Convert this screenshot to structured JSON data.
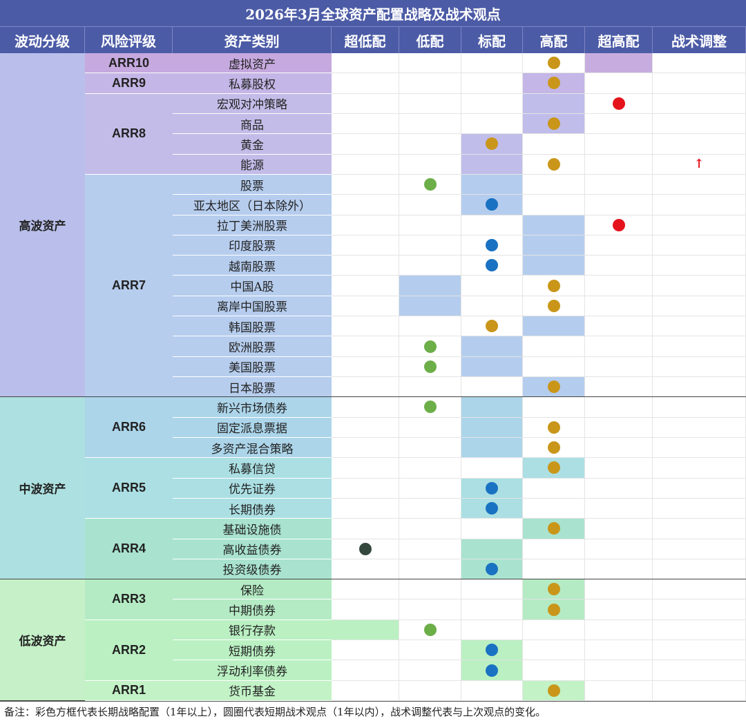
{
  "title": "2026年3月全球资产配置战略及战术观点",
  "columns": [
    "波动分级",
    "风险评级",
    "资产类别",
    "超低配",
    "低配",
    "标配",
    "高配",
    "超高配",
    "战术调整"
  ],
  "levels": [
    {
      "label": "高波资产",
      "color": "#b9bfea",
      "groups": [
        {
          "label": "ARR10",
          "color": "#c6a9df",
          "box_color": "#c7addf",
          "assets": [
            {
              "name": "虚拟资产",
              "box": 4,
              "dot": 3,
              "dot_color": "#c9961a"
            }
          ]
        },
        {
          "label": "ARR9",
          "color": "#c4b6e6",
          "box_color": "#c4b6e6",
          "assets": [
            {
              "name": "私募股权",
              "box": 3,
              "dot": 3,
              "dot_color": "#c9961a"
            }
          ]
        },
        {
          "label": "ARR8",
          "color": "#c4bce8",
          "box_color": "#c0bdea",
          "assets": [
            {
              "name": "宏观对冲策略",
              "box": 3,
              "dot": 4,
              "dot_color": "#e5141c"
            },
            {
              "name": "商品",
              "box": 3,
              "dot": 3,
              "dot_color": "#c9961a"
            },
            {
              "name": "黄金",
              "box": 2,
              "dot": 2,
              "dot_color": "#c9961a"
            },
            {
              "name": "能源",
              "box": 2,
              "dot": 3,
              "dot_color": "#c9961a",
              "adjust": "↑"
            }
          ]
        },
        {
          "label": "ARR7",
          "color": "#b6cdee",
          "box_color": "#b4cdee",
          "assets": [
            {
              "name": "股票",
              "box": 2,
              "dot": 1,
              "dot_color": "#6cae48"
            },
            {
              "name": "亚太地区（日本除外）",
              "box": 2,
              "dot": 2,
              "dot_color": "#1a72c2"
            },
            {
              "name": "拉丁美洲股票",
              "box": 3,
              "dot": 4,
              "dot_color": "#e5141c"
            },
            {
              "name": "印度股票",
              "box": 3,
              "dot": 2,
              "dot_color": "#1a72c2"
            },
            {
              "name": "越南股票",
              "box": 3,
              "dot": 2,
              "dot_color": "#1a72c2"
            },
            {
              "name": "中国A股",
              "box": 1,
              "dot": 3,
              "dot_color": "#c9961a"
            },
            {
              "name": "离岸中国股票",
              "box": 1,
              "dot": 3,
              "dot_color": "#c9961a"
            },
            {
              "name": "韩国股票",
              "box": 3,
              "dot": 2,
              "dot_color": "#c9961a"
            },
            {
              "name": "欧洲股票",
              "box": 2,
              "dot": 1,
              "dot_color": "#6cae48"
            },
            {
              "name": "美国股票",
              "box": 2,
              "dot": 1,
              "dot_color": "#6cae48"
            },
            {
              "name": "日本股票",
              "box": 3,
              "dot": 3,
              "dot_color": "#c9961a"
            }
          ]
        }
      ]
    },
    {
      "label": "中波资产",
      "color": "#ade0e0",
      "groups": [
        {
          "label": "ARR6",
          "color": "#acd5ea",
          "box_color": "#acd5ea",
          "assets": [
            {
              "name": "新兴市场债券",
              "box": 2,
              "dot": 1,
              "dot_color": "#6cae48"
            },
            {
              "name": "固定派息票据",
              "box": 2,
              "dot": 3,
              "dot_color": "#c9961a"
            },
            {
              "name": "多资产混合策略",
              "box": 2,
              "dot": 3,
              "dot_color": "#c9961a"
            }
          ]
        },
        {
          "label": "ARR5",
          "color": "#abdfe3",
          "box_color": "#abdfe3",
          "assets": [
            {
              "name": "私募信贷",
              "box": 3,
              "dot": 3,
              "dot_color": "#c9961a"
            },
            {
              "name": "优先证券",
              "box": 2,
              "dot": 2,
              "dot_color": "#1a72c2"
            },
            {
              "name": "长期债券",
              "box": 2,
              "dot": 2,
              "dot_color": "#1a72c2"
            }
          ]
        },
        {
          "label": "ARR4",
          "color": "#a9e3cf",
          "box_color": "#a9e3cf",
          "assets": [
            {
              "name": "基础设施债",
              "box": 3,
              "dot": 3,
              "dot_color": "#c9961a"
            },
            {
              "name": "高收益债券",
              "box": 2,
              "dot": 0,
              "dot_color": "#35483d"
            },
            {
              "name": "投资级债券",
              "box": 2,
              "dot": 2,
              "dot_color": "#1a72c2"
            }
          ]
        }
      ]
    },
    {
      "label": "低波资产",
      "color": "#c5f0c8",
      "groups": [
        {
          "label": "ARR3",
          "color": "#b4ebc4",
          "box_color": "#b4ebc4",
          "assets": [
            {
              "name": "保险",
              "box": 3,
              "dot": 3,
              "dot_color": "#c9961a"
            },
            {
              "name": "中期债券",
              "box": 3,
              "dot": 3,
              "dot_color": "#c9961a"
            }
          ]
        },
        {
          "label": "ARR2",
          "color": "#baf0c2",
          "box_color": "#baf0c2",
          "assets": [
            {
              "name": "银行存款",
              "box": 0,
              "dot": 1,
              "dot_color": "#6cae48"
            },
            {
              "name": "短期债券",
              "box": 2,
              "dot": 2,
              "dot_color": "#1a72c2"
            },
            {
              "name": "浮动利率债券",
              "box": 2,
              "dot": 2,
              "dot_color": "#1a72c2"
            }
          ]
        },
        {
          "label": "ARR1",
          "color": "#c2f2c6",
          "box_color": "#c2f2c6",
          "assets": [
            {
              "name": "货币基金",
              "box": 3,
              "dot": 3,
              "dot_color": "#c9961a"
            }
          ]
        }
      ]
    }
  ],
  "footnote": "备注：彩色方框代表长期战略配置（1年以上），圆圈代表短期战术观点（1年以内），战术调整代表与上次观点的变化。"
}
